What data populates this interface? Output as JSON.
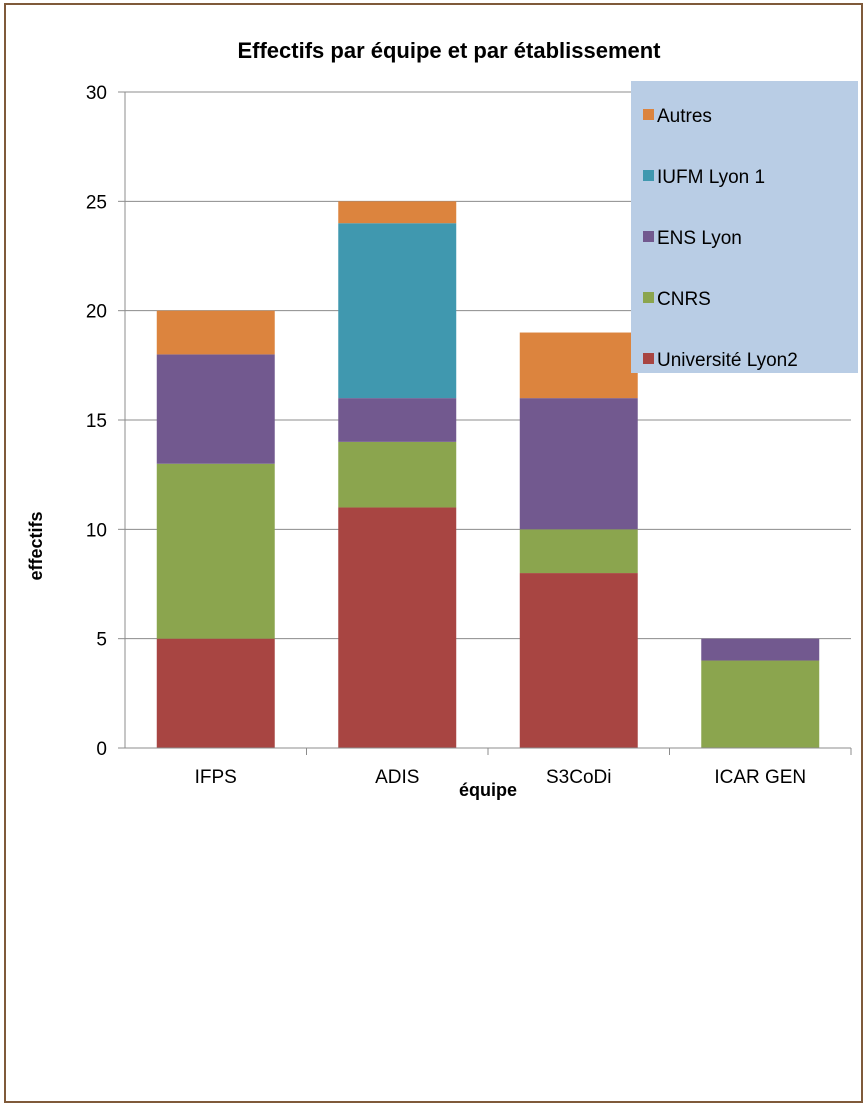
{
  "chart_data": {
    "type": "bar",
    "stacked": true,
    "title": "Effectifs par équipe et par établissement",
    "xlabel": "équipe",
    "ylabel": "effectifs",
    "ylim": [
      0,
      30
    ],
    "yticks": [
      "0",
      "5",
      "10",
      "15",
      "20",
      "25",
      "30"
    ],
    "grid": true,
    "legend_position": "top-right",
    "categories": [
      "IFPS",
      "ADIS",
      "S3CoDi",
      "ICAR GEN"
    ],
    "series": [
      {
        "name": "Université Lyon2",
        "color": "#a84542",
        "values": [
          5,
          11,
          8,
          0
        ]
      },
      {
        "name": "CNRS",
        "color": "#8ba54e",
        "values": [
          8,
          3,
          2,
          4
        ]
      },
      {
        "name": "ENS Lyon",
        "color": "#72598f",
        "values": [
          5,
          2,
          6,
          1
        ]
      },
      {
        "name": "IUFM Lyon 1",
        "color": "#4098af",
        "values": [
          0,
          8,
          0,
          0
        ]
      },
      {
        "name": "Autres",
        "color": "#dc843e",
        "values": [
          2,
          1,
          3,
          0
        ]
      }
    ],
    "legend_order": [
      "Autres",
      "IUFM Lyon 1",
      "ENS Lyon",
      "CNRS",
      "Université Lyon2"
    ],
    "colors": {
      "legend_background": "#b9cde5",
      "gridline": "#8c8c8c",
      "frame_border": "#7f5a3a"
    }
  }
}
